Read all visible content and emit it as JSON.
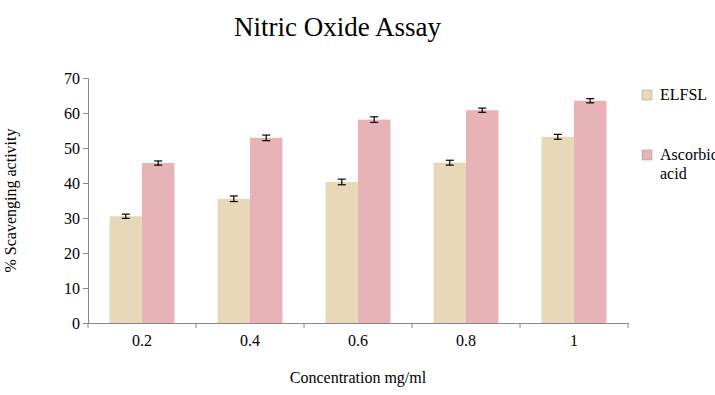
{
  "chart_data": {
    "type": "bar",
    "title": "Nitric Oxide Assay",
    "x_label": "Concentration mg/ml",
    "y_label": "% Scavenging activity",
    "categories": [
      "0.2",
      "0.4",
      "0.6",
      "0.8",
      "1"
    ],
    "series": [
      {
        "name": "ELFSL",
        "color": "#e6d8b8",
        "values": [
          30.5,
          35.5,
          40.3,
          45.8,
          53.2
        ],
        "errors": [
          0.6,
          0.8,
          0.8,
          0.7,
          0.7
        ]
      },
      {
        "name": "Ascorbic acid",
        "color": "#e8b3b6",
        "values": [
          45.7,
          52.9,
          58.1,
          60.8,
          63.5
        ],
        "errors": [
          0.6,
          0.8,
          0.8,
          0.6,
          0.6
        ]
      }
    ],
    "ylim": [
      0,
      70
    ],
    "yticks": [
      0,
      10,
      20,
      30,
      40,
      50,
      60,
      70
    ],
    "grid": false,
    "legend": "right"
  }
}
